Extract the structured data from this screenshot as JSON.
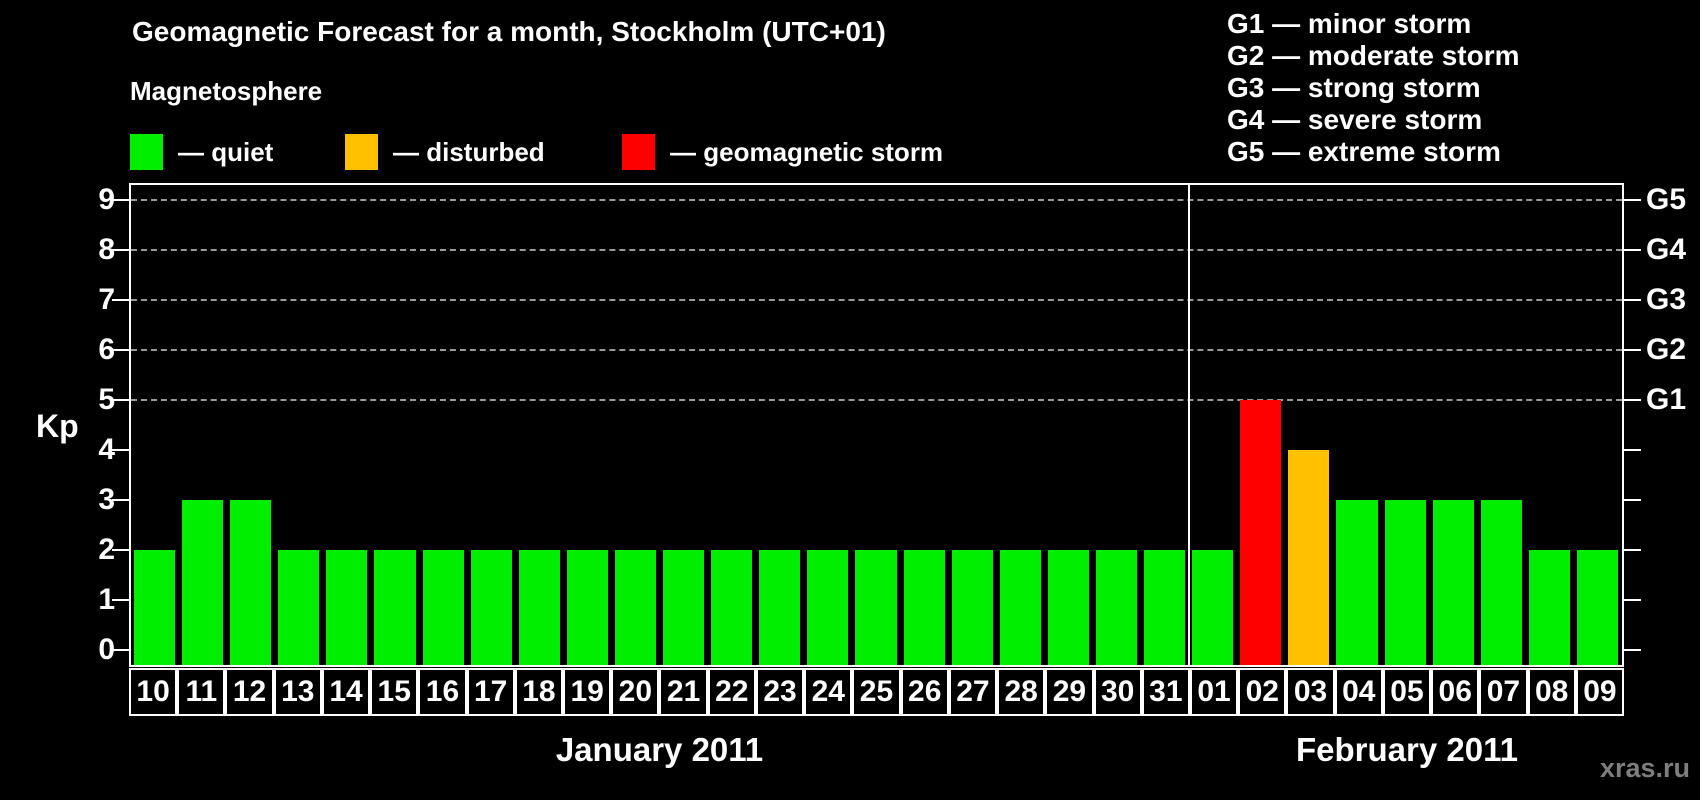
{
  "title": "Geomagnetic Forecast for a month, Stockholm (UTC+01)",
  "legend": {
    "heading": "Magnetosphere",
    "items": [
      {
        "name": "quiet",
        "label": "— quiet",
        "color": "#00ee00"
      },
      {
        "name": "disturbed",
        "label": "— disturbed",
        "color": "#ffc000"
      },
      {
        "name": "storm",
        "label": "— geomagnetic storm",
        "color": "#ff0000"
      }
    ]
  },
  "storm_scale_legend": [
    "G1 — minor storm",
    "G2 — moderate storm",
    "G3 — strong storm",
    "G4 — severe storm",
    "G5 — extreme storm"
  ],
  "axes": {
    "y_label": "Kp",
    "y_ticks": [
      0,
      1,
      2,
      3,
      4,
      5,
      6,
      7,
      8,
      9
    ],
    "grid_at": [
      5,
      6,
      7,
      8,
      9
    ],
    "right_labels": [
      {
        "kp": 5,
        "label": "G1"
      },
      {
        "kp": 6,
        "label": "G2"
      },
      {
        "kp": 7,
        "label": "G3"
      },
      {
        "kp": 8,
        "label": "G4"
      },
      {
        "kp": 9,
        "label": "G5"
      }
    ]
  },
  "watermark": "xras.ru",
  "chart_data": {
    "type": "bar",
    "title": "Geomagnetic Forecast for a month, Stockholm (UTC+01)",
    "ylabel": "Kp",
    "ylim": [
      0,
      9
    ],
    "grid": "dashed horizontal lines at Kp 5–9 only",
    "legend_position": "top-left (quiet/disturbed/storm), top-right (G1–G5)",
    "months": [
      {
        "label": "January 2011",
        "days": [
          "10",
          "11",
          "12",
          "13",
          "14",
          "15",
          "16",
          "17",
          "18",
          "19",
          "20",
          "21",
          "22",
          "23",
          "24",
          "25",
          "26",
          "27",
          "28",
          "29",
          "30",
          "31"
        ],
        "kp": [
          2,
          3,
          3,
          2,
          2,
          2,
          2,
          2,
          2,
          2,
          2,
          2,
          2,
          2,
          2,
          2,
          2,
          2,
          2,
          2,
          2,
          2
        ]
      },
      {
        "label": "February 2011",
        "days": [
          "01",
          "02",
          "03",
          "04",
          "05",
          "06",
          "07",
          "08",
          "09"
        ],
        "kp": [
          2,
          5,
          4,
          3,
          3,
          3,
          3,
          2,
          2
        ]
      }
    ]
  }
}
